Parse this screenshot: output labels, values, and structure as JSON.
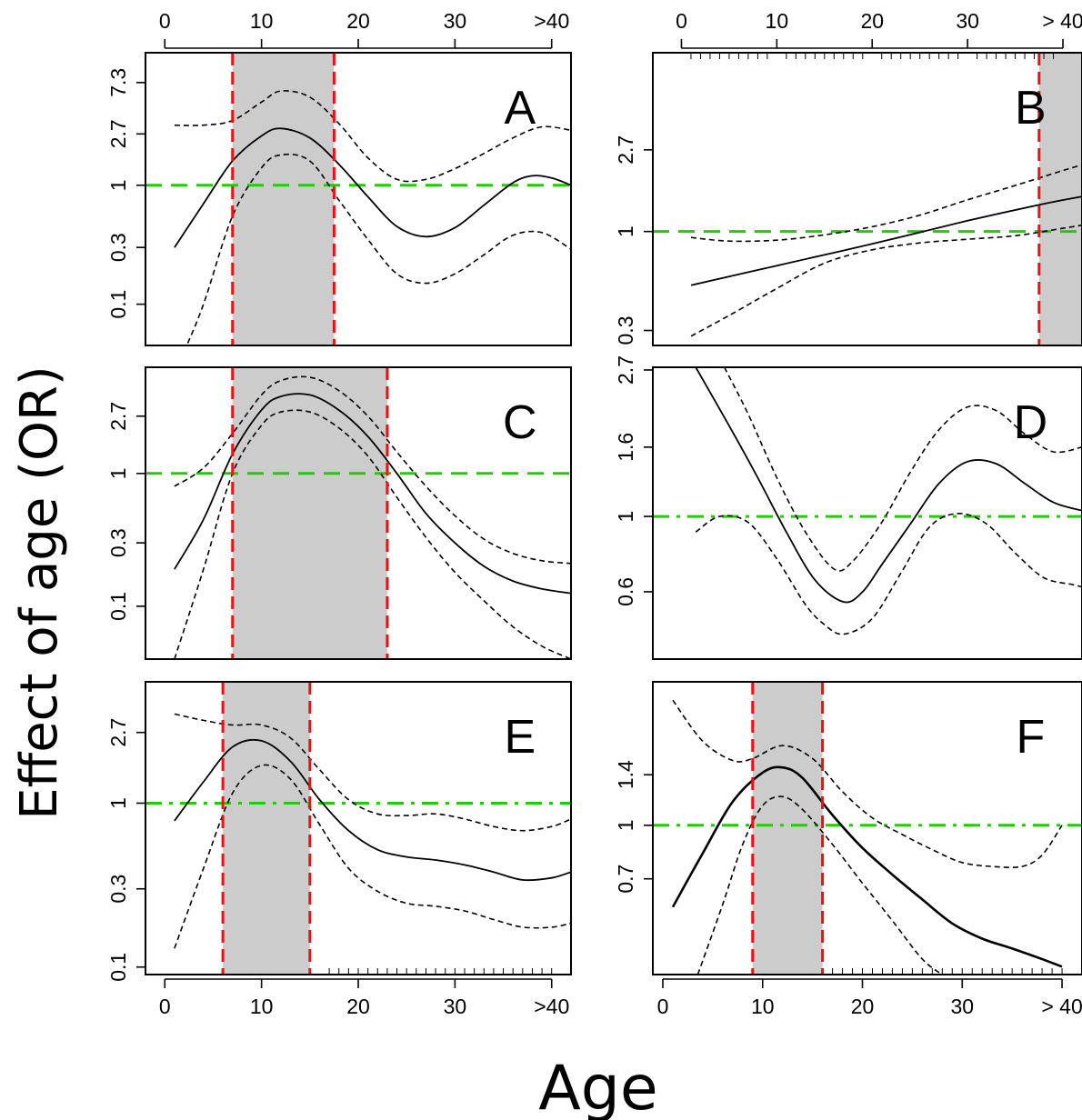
{
  "figure": {
    "ylabel": "Effect of age (OR)",
    "xlabel": "Age",
    "x_tick_labels": [
      "0",
      "10",
      "20",
      "30",
      ">40"
    ]
  },
  "colors": {
    "frame": "#000000",
    "shade": "#cccccc",
    "reference_line": "#22cc00",
    "boundary_line": "#ee1111",
    "estimate": "#000000",
    "confidence_band": "#000000"
  },
  "chart_data": [
    {
      "type": "line",
      "panel": "A",
      "x_tick_labels": [
        "0",
        "10",
        "20",
        "30",
        ">40"
      ],
      "xlim": [
        -2,
        42
      ],
      "y_ticks": [
        0.1,
        0.3,
        1,
        2.7,
        7.3
      ],
      "y_tick_labels": [
        "0.1",
        "0.3",
        "1",
        "2.7",
        "7.3"
      ],
      "ylim": [
        0.045,
        13
      ],
      "y_scale": "log",
      "reference_y": 1,
      "reference_style": "dashed",
      "shaded_region": [
        7,
        17.5
      ],
      "series": [
        {
          "role": "estimate",
          "line_style": "solid",
          "x": [
            1,
            4,
            7,
            10,
            12,
            15,
            18,
            21,
            24,
            27,
            30,
            33,
            36,
            38,
            40,
            42
          ],
          "y": [
            0.3,
            0.7,
            1.6,
            2.6,
            3.0,
            2.5,
            1.5,
            0.8,
            0.45,
            0.37,
            0.44,
            0.68,
            1.05,
            1.2,
            1.15,
            1.0
          ]
        },
        {
          "role": "upper_ci",
          "line_style": "dashed",
          "x": [
            1,
            4,
            7,
            10,
            12,
            15,
            18,
            21,
            24,
            27,
            30,
            33,
            36,
            39,
            42
          ],
          "y": [
            3.2,
            3.2,
            3.5,
            5.0,
            6.2,
            5.5,
            3.3,
            1.7,
            1.12,
            1.12,
            1.38,
            1.85,
            2.5,
            3.1,
            2.9
          ]
        },
        {
          "role": "lower_ci",
          "line_style": "dashed",
          "x": [
            2,
            4,
            7,
            10,
            12,
            15,
            18,
            21,
            24,
            27,
            30,
            33,
            36,
            39,
            42
          ],
          "y": [
            0.04,
            0.1,
            0.55,
            1.4,
            1.8,
            1.6,
            0.75,
            0.35,
            0.18,
            0.15,
            0.18,
            0.26,
            0.38,
            0.4,
            0.29
          ]
        }
      ]
    },
    {
      "type": "line",
      "panel": "B",
      "x_tick_labels": [
        "0",
        "10",
        "20",
        "30",
        "> 40"
      ],
      "xlim": [
        -3,
        42
      ],
      "y_ticks": [
        0.3,
        1,
        2.7
      ],
      "y_tick_labels": [
        "0.3",
        "1",
        "2.7"
      ],
      "ylim": [
        0.25,
        8.8
      ],
      "y_scale": "log",
      "reference_y": 1,
      "reference_style": "dashed",
      "shaded_region": [
        37.5,
        42
      ],
      "series": [
        {
          "role": "estimate",
          "line_style": "solid",
          "x": [
            1,
            10,
            20,
            30,
            38,
            42
          ],
          "y": [
            0.52,
            0.66,
            0.86,
            1.14,
            1.4,
            1.53
          ]
        },
        {
          "role": "upper_ci",
          "line_style": "dashed",
          "x": [
            1,
            5,
            10,
            15,
            20,
            25,
            30,
            35,
            40,
            42
          ],
          "y": [
            0.93,
            0.89,
            0.9,
            0.96,
            1.06,
            1.22,
            1.47,
            1.75,
            2.1,
            2.25
          ]
        },
        {
          "role": "lower_ci",
          "line_style": "dashed",
          "x": [
            1,
            5,
            10,
            15,
            20,
            25,
            30,
            35,
            40,
            42
          ],
          "y": [
            0.28,
            0.36,
            0.5,
            0.68,
            0.8,
            0.87,
            0.91,
            0.95,
            1.04,
            1.08
          ]
        }
      ]
    },
    {
      "type": "line",
      "panel": "C",
      "x_tick_labels": [],
      "xlim": [
        -2,
        42
      ],
      "y_ticks": [
        0.1,
        0.3,
        1,
        2.7
      ],
      "y_tick_labels": [
        "0.1",
        "0.3",
        "1",
        "2.7"
      ],
      "ylim": [
        0.04,
        6.3
      ],
      "y_scale": "log",
      "reference_y": 1,
      "reference_style": "dashed",
      "shaded_region": [
        7,
        23
      ],
      "series": [
        {
          "role": "estimate",
          "line_style": "solid",
          "x": [
            1,
            4,
            7,
            10,
            12,
            15,
            18,
            21,
            24,
            27,
            30,
            33,
            36,
            39,
            42
          ],
          "y": [
            0.19,
            0.45,
            1.4,
            3.0,
            3.8,
            3.9,
            3.0,
            1.9,
            1.0,
            0.5,
            0.3,
            0.2,
            0.155,
            0.135,
            0.125
          ]
        },
        {
          "role": "upper_ci",
          "line_style": "dashed",
          "x": [
            1,
            4,
            7,
            10,
            12,
            15,
            18,
            21,
            24,
            27,
            30,
            33,
            36,
            39,
            42
          ],
          "y": [
            0.8,
            1.1,
            2.0,
            3.9,
            5.0,
            5.3,
            4.2,
            2.7,
            1.45,
            0.8,
            0.48,
            0.32,
            0.25,
            0.22,
            0.21
          ]
        },
        {
          "role": "lower_ci",
          "line_style": "dashed",
          "x": [
            1,
            4,
            7,
            10,
            12,
            15,
            18,
            21,
            24,
            27,
            30,
            33,
            36,
            39,
            42
          ],
          "y": [
            0.04,
            0.19,
            1.0,
            2.3,
            2.9,
            2.9,
            2.2,
            1.35,
            0.66,
            0.33,
            0.18,
            0.11,
            0.07,
            0.05,
            0.04
          ]
        }
      ]
    },
    {
      "type": "line",
      "panel": "D",
      "x_tick_labels": [],
      "xlim": [
        -3,
        42
      ],
      "y_ticks": [
        0.6,
        1,
        1.6,
        2.7
      ],
      "y_tick_labels": [
        "0.6",
        "1",
        "1.6",
        "2.7"
      ],
      "ylim": [
        0.38,
        2.75
      ],
      "y_scale": "log",
      "reference_y": 1,
      "reference_style": "dash-dot",
      "shaded_region": null,
      "series": [
        {
          "role": "estimate",
          "line_style": "solid",
          "x": [
            1.5,
            5,
            8,
            11,
            14,
            17,
            19,
            21,
            24,
            27,
            30,
            33,
            36,
            39,
            42
          ],
          "y": [
            2.75,
            1.85,
            1.3,
            0.9,
            0.65,
            0.56,
            0.6,
            0.72,
            0.95,
            1.25,
            1.45,
            1.43,
            1.25,
            1.1,
            1.04
          ]
        },
        {
          "role": "upper_ci",
          "line_style": "dashed",
          "x": [
            4.5,
            7,
            10,
            13,
            16,
            18,
            21,
            24,
            27,
            30,
            33,
            36,
            39,
            42
          ],
          "y": [
            2.75,
            2.0,
            1.3,
            0.9,
            0.7,
            0.74,
            0.96,
            1.35,
            1.8,
            2.1,
            2.05,
            1.75,
            1.55,
            1.6
          ]
        },
        {
          "role": "lower_ci",
          "line_style": "dashed",
          "x": [
            1.5,
            4,
            7,
            10,
            13,
            15,
            17,
            20,
            23,
            26,
            29,
            32,
            35,
            38,
            41,
            42
          ],
          "y": [
            0.9,
            1.0,
            0.96,
            0.75,
            0.55,
            0.48,
            0.45,
            0.5,
            0.68,
            0.93,
            1.02,
            0.95,
            0.78,
            0.66,
            0.63,
            0.62
          ]
        }
      ]
    },
    {
      "type": "line",
      "panel": "E",
      "x_tick_labels": [
        "0",
        "10",
        "20",
        "30",
        ">40"
      ],
      "xlim": [
        -2,
        42
      ],
      "y_ticks": [
        0.1,
        0.3,
        1,
        2.7
      ],
      "y_tick_labels": [
        "0.1",
        "0.3",
        "1",
        "2.7"
      ],
      "ylim": [
        0.09,
        5.5
      ],
      "y_scale": "log",
      "reference_y": 1,
      "reference_style": "dash-dot",
      "shaded_region": [
        6,
        15
      ],
      "series": [
        {
          "role": "estimate",
          "line_style": "solid",
          "x": [
            1,
            4,
            7,
            10,
            13,
            16,
            19,
            22,
            25,
            28,
            31,
            34,
            37,
            40,
            42
          ],
          "y": [
            0.78,
            1.35,
            2.2,
            2.4,
            1.8,
            1.05,
            0.68,
            0.52,
            0.47,
            0.45,
            0.42,
            0.38,
            0.34,
            0.35,
            0.38
          ]
        },
        {
          "role": "upper_ci",
          "line_style": "dashed",
          "x": [
            1,
            4,
            7,
            10,
            13,
            16,
            19,
            22,
            25,
            28,
            31,
            34,
            37,
            40,
            42
          ],
          "y": [
            3.5,
            3.2,
            3.0,
            3.0,
            2.5,
            1.6,
            1.05,
            0.86,
            0.84,
            0.86,
            0.8,
            0.72,
            0.68,
            0.72,
            0.8
          ]
        },
        {
          "role": "lower_ci",
          "line_style": "dashed",
          "x": [
            1,
            4,
            7,
            10,
            13,
            16,
            19,
            22,
            25,
            28,
            31,
            34,
            37,
            40,
            42
          ],
          "y": [
            0.13,
            0.4,
            1.15,
            1.7,
            1.4,
            0.74,
            0.4,
            0.29,
            0.245,
            0.235,
            0.22,
            0.195,
            0.175,
            0.175,
            0.185
          ]
        }
      ]
    },
    {
      "type": "line",
      "panel": "F",
      "x_tick_labels": [
        "0",
        "10",
        "20",
        "30",
        "> 40"
      ],
      "xlim": [
        -1,
        42
      ],
      "y_ticks": [
        0.7,
        1,
        1.4
      ],
      "y_tick_labels": [
        "0.7",
        "1",
        "1.4"
      ],
      "ylim": [
        0.37,
        2.6
      ],
      "y_scale": "log",
      "reference_y": 1,
      "reference_style": "dash-dot",
      "shaded_region": [
        9,
        16
      ],
      "series": [
        {
          "role": "estimate",
          "line_style": "solid-thick",
          "x": [
            1,
            4,
            7,
            10,
            12,
            14,
            17,
            20,
            23,
            26,
            29,
            32,
            35,
            38,
            40
          ],
          "y": [
            0.58,
            0.83,
            1.17,
            1.42,
            1.47,
            1.37,
            1.07,
            0.86,
            0.72,
            0.61,
            0.52,
            0.47,
            0.44,
            0.41,
            0.39
          ]
        },
        {
          "role": "upper_ci",
          "line_style": "dashed",
          "x": [
            1,
            4,
            7,
            9,
            12,
            15,
            18,
            21,
            24,
            27,
            30,
            33,
            36,
            38,
            40
          ],
          "y": [
            2.3,
            1.75,
            1.54,
            1.56,
            1.7,
            1.56,
            1.25,
            1.05,
            0.94,
            0.85,
            0.78,
            0.76,
            0.76,
            0.82,
            1.0
          ]
        },
        {
          "role": "lower_ci",
          "line_style": "dashed",
          "x": [
            3.5,
            6,
            8,
            10,
            12,
            14,
            17,
            20,
            23,
            26,
            28
          ],
          "y": [
            0.37,
            0.59,
            0.88,
            1.14,
            1.21,
            1.11,
            0.88,
            0.68,
            0.53,
            0.41,
            0.37
          ]
        }
      ]
    }
  ]
}
